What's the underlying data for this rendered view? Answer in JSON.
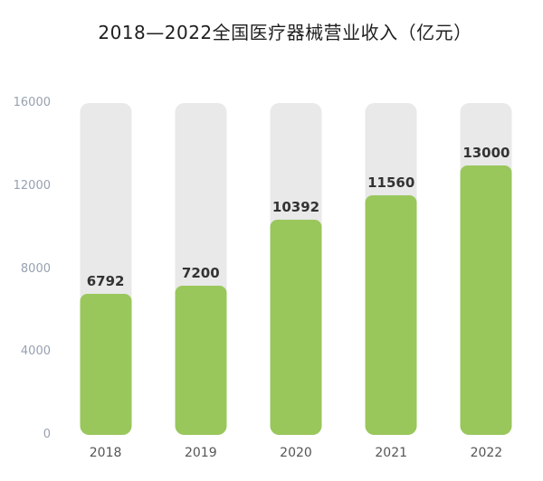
{
  "title": "2018—2022全国医疗器械营业收入（亿元）",
  "chart_data": {
    "type": "bar",
    "title": "2018—2022全国医疗器械营业收入（亿元）",
    "categories": [
      "2018",
      "2019",
      "2020",
      "2021",
      "2022"
    ],
    "values": [
      6792,
      7200,
      10392,
      11560,
      13000
    ],
    "xlabel": "",
    "ylabel": "",
    "ylim": [
      0,
      16000
    ],
    "yticks": [
      0,
      4000,
      8000,
      12000,
      16000
    ],
    "grid": false,
    "legend": "none",
    "value_labels_shown": true,
    "colors": {
      "bar": "#99c75c",
      "track": "#e9e9e9",
      "title_text": "#1f1f1f",
      "tick_text": "#97a1b0",
      "category_text": "#555555",
      "value_text": "#333333",
      "background": "#ffffff"
    }
  }
}
